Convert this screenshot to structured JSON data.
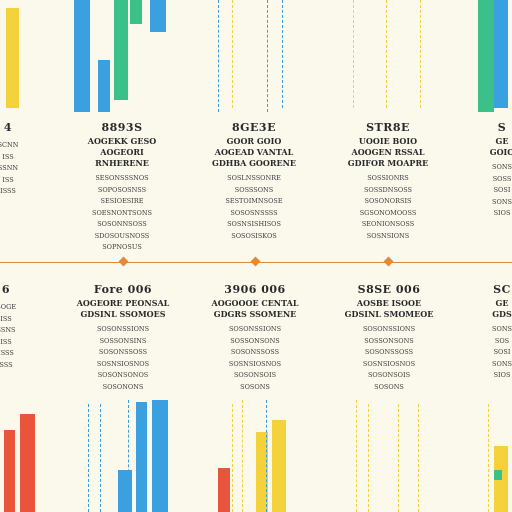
{
  "colors": {
    "background": "#fbf8ec",
    "timeline": "#e08a3c",
    "blue": "#3aa0e0",
    "green": "#3cc08a",
    "yellow": "#f4d23c",
    "red": "#e8553c",
    "text": "#2a2a2a"
  },
  "top_row": [
    {
      "title": "4",
      "lines": [
        "SCNN",
        "ISS",
        "SSNN",
        "ISS",
        "ISSS"
      ]
    },
    {
      "title": "8893S",
      "sub": [
        "AOGEKK GESO",
        "AOGEORI RNHERENE"
      ],
      "lines": [
        "SESONSSSNOS",
        "SOPOSOSNSS",
        "SESIOESIRE",
        "SOESNONTSONS",
        "SOSONNSOSS",
        "SDOSOUSNOSS",
        "SOPNOSUS"
      ]
    },
    {
      "title": "8GE3E",
      "sub": [
        "GOOR GOIO",
        "AOGEAD VANTAL",
        "GDHBA GOORENE"
      ],
      "lines": [
        "SOSLNSSONRE",
        "SOSSSONS",
        "SESTOIMNSOSE",
        "SOSOSNSSSS",
        "SOSNSISHISOS",
        "SOSOSISKOS"
      ]
    },
    {
      "title": "STR8E",
      "sub": [
        "UOOIE BOIO",
        "AOOGEN RSSAL",
        "GDIFOR MOAPRE"
      ],
      "lines": [
        "SOSSIONRS",
        "SOSSDNSOSS",
        "SOSONORSIS",
        "SGSONOMOOSS",
        "SEONIONSOSS",
        "SOSNSIONS"
      ]
    },
    {
      "title": "S",
      "sub": [
        "GE",
        "GOIO"
      ],
      "lines": [
        "SONS",
        "SOSS",
        "SOSI",
        "SONS",
        "SIOS"
      ]
    }
  ],
  "bottom_row": [
    {
      "title": "6",
      "lines": [
        "BOGE",
        "ISS",
        "SSNS",
        "ISS",
        "ISSS",
        "SSS"
      ]
    },
    {
      "title": "Fore 006",
      "sub": [
        "AOGEORE PEONSAL",
        "GDSINL SSOMOES"
      ],
      "lines": [
        "SOSONSSIONS",
        "SOSSONSINS",
        "SOSONSSOSS",
        "SOSNSIOSNOS",
        "SOSONSONOS",
        "SOSONONS"
      ]
    },
    {
      "title": "3906 006",
      "sub": [
        "AOGOOOE CENTAL",
        "GDGRS SSOMENE"
      ],
      "lines": [
        "SOSONSSIONS",
        "SOSSONSONS",
        "SOSONSSOSS",
        "SOSNSIOSNOS",
        "SOSONSOIS",
        "SOSONS"
      ]
    },
    {
      "title": "S8SE 006",
      "sub": [
        "AOSBE ISOOE",
        "GDSINL SMOMEOE"
      ],
      "lines": [
        "SOSONSSIONS",
        "SOSSONSONS",
        "SOSONSSOSS",
        "SOSNSIOSNOS",
        "SOSONSOIS",
        "SOSONS"
      ]
    },
    {
      "title": "SC",
      "sub": [
        "GE",
        "GDS"
      ],
      "lines": [
        "SONS",
        "SOS",
        "SOSI",
        "SONS",
        "SIOS"
      ]
    }
  ]
}
